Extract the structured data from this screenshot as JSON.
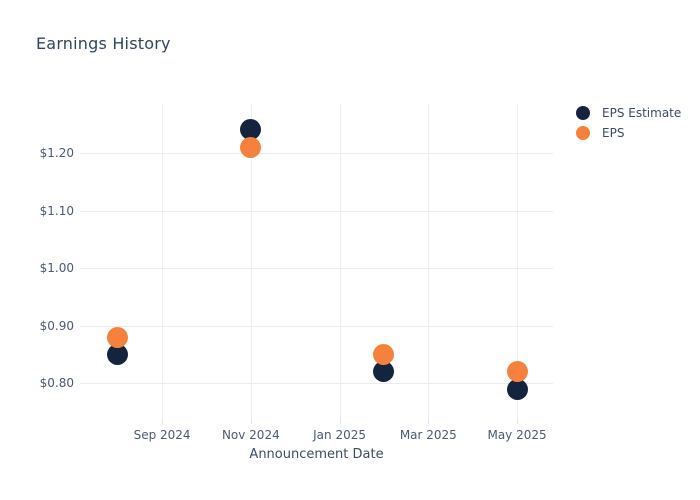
{
  "chart_data": {
    "type": "scatter",
    "title": "Earnings History",
    "xlabel": "Announcement Date",
    "ylabel": "",
    "x_unit": "months since Jul 2024",
    "xlim": [
      0.15,
      10.81
    ],
    "ylim": [
      0.74,
      1.285
    ],
    "grid": true,
    "legend_position": "top-right",
    "background": "#ffffff",
    "grid_color": "#e8ecf4",
    "x_ticks": [
      {
        "t": 2,
        "label": "Sep 2024"
      },
      {
        "t": 4,
        "label": "Nov 2024"
      },
      {
        "t": 6,
        "label": "Jan 2025"
      },
      {
        "t": 8,
        "label": "Mar 2025"
      },
      {
        "t": 10,
        "label": "May 2025"
      }
    ],
    "y_ticks": [
      {
        "v": 0.8,
        "label": "$0.80"
      },
      {
        "v": 0.9,
        "label": "$0.90"
      },
      {
        "v": 1.0,
        "label": "$1.00"
      },
      {
        "v": 1.1,
        "label": "$1.10"
      },
      {
        "v": 1.2,
        "label": "$1.20"
      }
    ],
    "series": [
      {
        "name": "EPS Estimate",
        "color": "#15243E",
        "marker": "circle",
        "points": [
          {
            "t": 1,
            "x": "Aug 2024",
            "y": 0.85
          },
          {
            "t": 4,
            "x": "Nov 2024",
            "y": 1.24
          },
          {
            "t": 7,
            "x": "Feb 2025",
            "y": 0.82
          },
          {
            "t": 10,
            "x": "May 2025",
            "y": 0.79
          }
        ]
      },
      {
        "name": "EPS",
        "color": "#F5813D",
        "marker": "circle",
        "points": [
          {
            "t": 1,
            "x": "Aug 2024",
            "y": 0.88
          },
          {
            "t": 4,
            "x": "Nov 2024",
            "y": 1.21
          },
          {
            "t": 7,
            "x": "Feb 2025",
            "y": 0.85
          },
          {
            "t": 10,
            "x": "May 2025",
            "y": 0.82
          }
        ]
      }
    ]
  }
}
